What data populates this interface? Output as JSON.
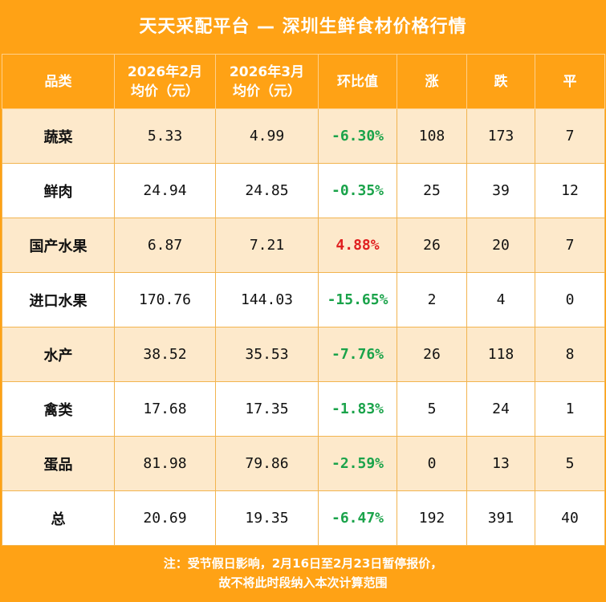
{
  "title": "天天采配平台 — 深圳生鲜食材价格行情",
  "table": {
    "headers": {
      "category": "品类",
      "feb_line1": "2026年2月",
      "feb_line2": "均价（元）",
      "mar_line1": "2026年3月",
      "mar_line2": "均价（元）",
      "mom": "环比值",
      "up": "涨",
      "down": "跌",
      "flat": "平"
    },
    "rows": [
      {
        "category": "蔬菜",
        "feb": "5.33",
        "mar": "4.99",
        "mom": "-6.30%",
        "up": "108",
        "down": "173",
        "flat": "7"
      },
      {
        "category": "鲜肉",
        "feb": "24.94",
        "mar": "24.85",
        "mom": "-0.35%",
        "up": "25",
        "down": "39",
        "flat": "12"
      },
      {
        "category": "国产水果",
        "feb": "6.87",
        "mar": "7.21",
        "mom": "4.88%",
        "up": "26",
        "down": "20",
        "flat": "7"
      },
      {
        "category": "进口水果",
        "feb": "170.76",
        "mar": "144.03",
        "mom": "-15.65%",
        "up": "2",
        "down": "4",
        "flat": "0"
      },
      {
        "category": "水产",
        "feb": "38.52",
        "mar": "35.53",
        "mom": "-7.76%",
        "up": "26",
        "down": "118",
        "flat": "8"
      },
      {
        "category": "禽类",
        "feb": "17.68",
        "mar": "17.35",
        "mom": "-1.83%",
        "up": "5",
        "down": "24",
        "flat": "1"
      },
      {
        "category": "蛋品",
        "feb": "81.98",
        "mar": "79.86",
        "mom": "-2.59%",
        "up": "0",
        "down": "13",
        "flat": "5"
      },
      {
        "category": "总",
        "feb": "20.69",
        "mar": "19.35",
        "mom": "-6.47%",
        "up": "192",
        "down": "391",
        "flat": "40"
      }
    ]
  },
  "footer": {
    "line1": "注：受节假日影响，2月16日至2月23日暂停报价，",
    "line2": "故不将此时段纳入本次计算范围"
  },
  "colors": {
    "brand_orange": "#ffa215",
    "row_shade": "#fde9cb",
    "negative_change": "#1aa34a",
    "positive_change": "#e02020"
  }
}
